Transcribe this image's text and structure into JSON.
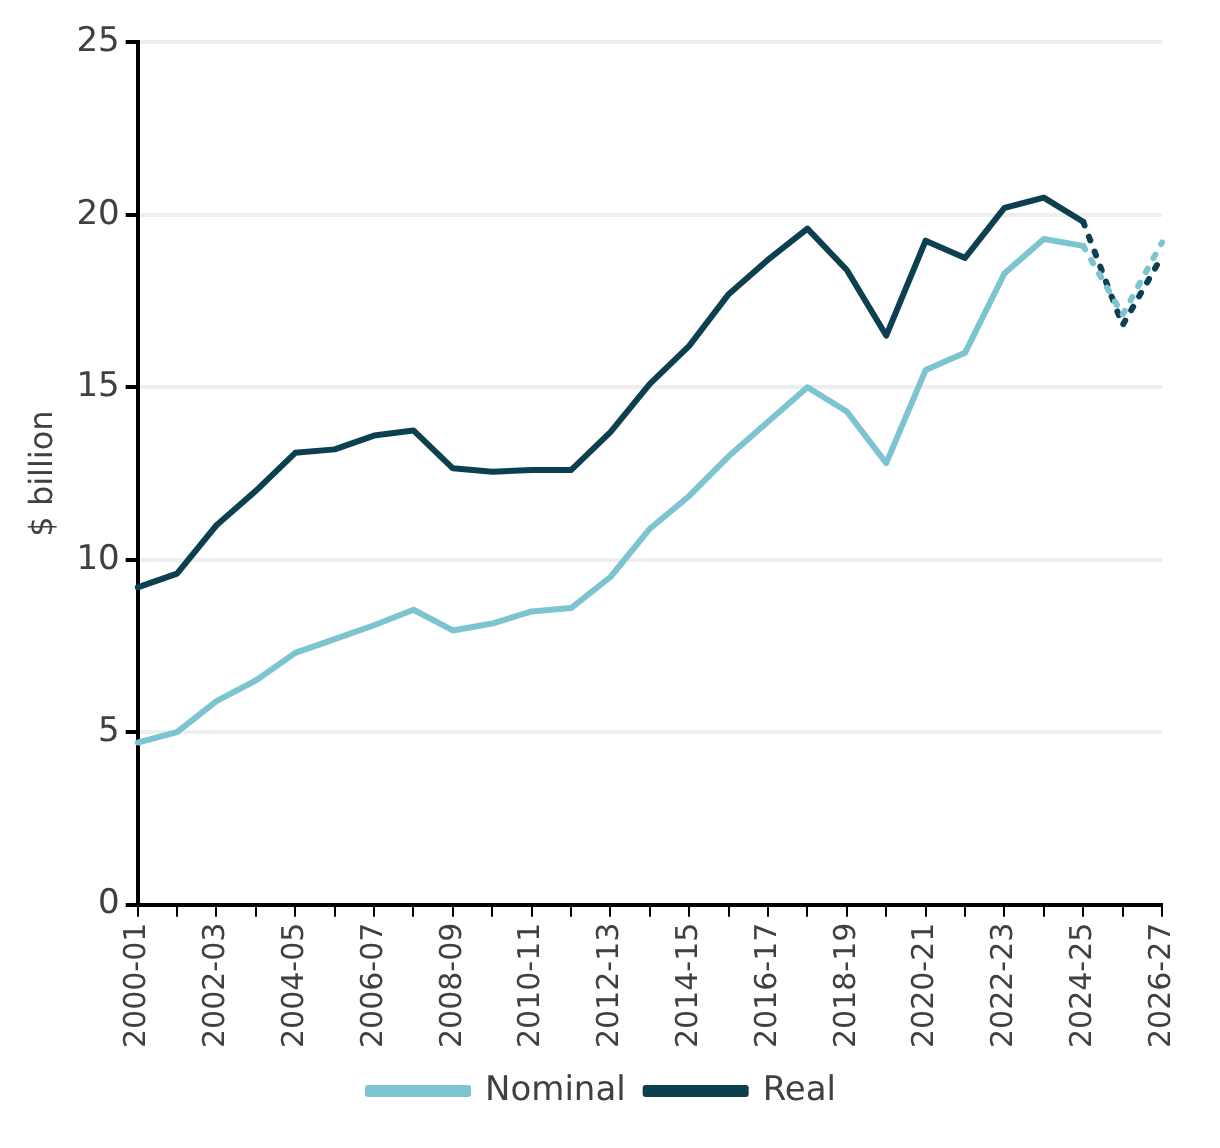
{
  "chart_data": {
    "type": "line",
    "ylabel": "$ billion",
    "categories": [
      "2000-01",
      null,
      "2002-03",
      null,
      "2004-05",
      null,
      "2006-07",
      null,
      "2008-09",
      null,
      "2010-11",
      null,
      "2012-13",
      null,
      "2014-15",
      null,
      "2016-17",
      null,
      "2018-19",
      null,
      "2020-21",
      null,
      "2022-23",
      null,
      "2024-25",
      null,
      "2026-27"
    ],
    "series": [
      {
        "name": "Nominal",
        "color": "#7cc4d0",
        "line_style": "solid",
        "values": [
          4.7,
          5.0,
          5.9,
          6.5,
          7.3,
          7.7,
          8.1,
          8.55,
          7.95,
          8.15,
          8.5,
          8.6,
          9.5,
          10.9,
          11.85,
          13.0,
          14.0,
          15.0,
          14.3,
          12.8,
          15.5,
          16.0,
          18.3,
          19.3,
          19.1,
          null,
          null
        ]
      },
      {
        "name": "Real",
        "color": "#0c4050",
        "line_style": "solid",
        "values": [
          9.2,
          9.6,
          11.0,
          12.0,
          13.1,
          13.2,
          13.6,
          13.75,
          12.65,
          12.55,
          12.6,
          12.6,
          13.7,
          15.1,
          16.2,
          17.7,
          18.7,
          19.6,
          18.4,
          16.5,
          19.25,
          18.75,
          20.2,
          20.5,
          19.8,
          null,
          null
        ]
      },
      {
        "color": "#7cc4d0",
        "line_style": "dotted",
        "values": [
          null,
          null,
          null,
          null,
          null,
          null,
          null,
          null,
          null,
          null,
          null,
          null,
          null,
          null,
          null,
          null,
          null,
          null,
          null,
          null,
          null,
          null,
          null,
          null,
          19.1,
          17.1,
          19.2
        ]
      },
      {
        "color": "#0c4050",
        "line_style": "dotted",
        "values": [
          null,
          null,
          null,
          null,
          null,
          null,
          null,
          null,
          null,
          null,
          null,
          null,
          null,
          null,
          null,
          null,
          null,
          null,
          null,
          null,
          null,
          null,
          null,
          null,
          19.8,
          16.8,
          18.8
        ]
      }
    ],
    "ylim": [
      0,
      25
    ],
    "yticks": [
      0,
      5,
      10,
      15,
      20,
      25
    ],
    "grid": "y",
    "legend": "bottom",
    "marker": "none"
  }
}
